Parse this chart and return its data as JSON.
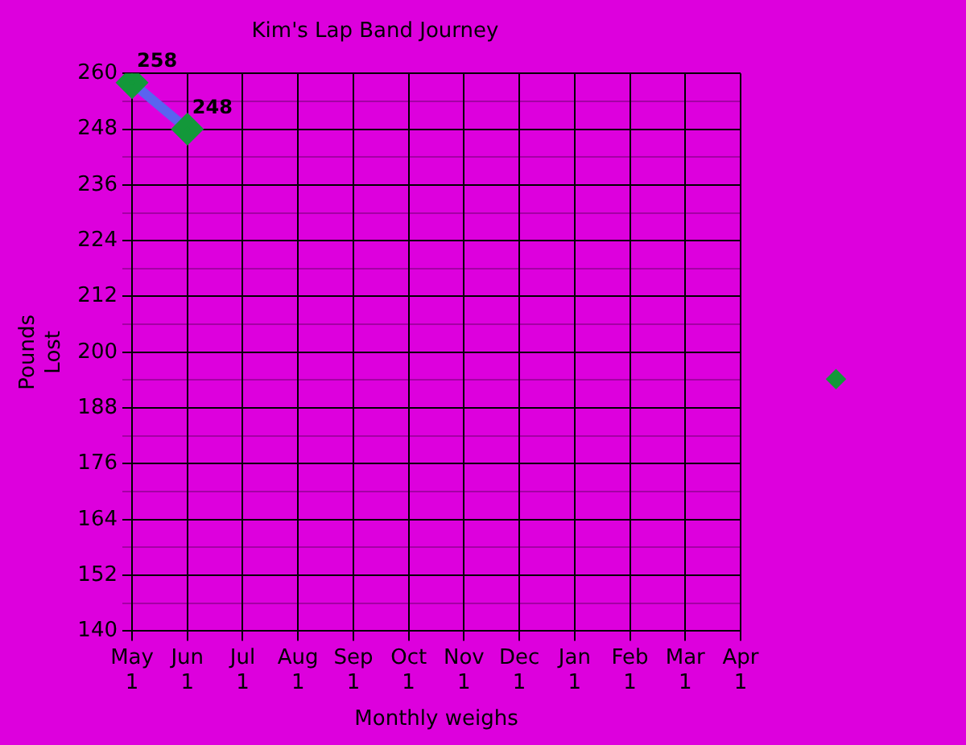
{
  "chart_data": {
    "type": "line",
    "title": "Kim's Lap Band Journey",
    "xlabel": "Monthly weighs",
    "ylabel": "Pounds\nLost",
    "categories": [
      "May\n1",
      "Jun\n1",
      "Jul\n1",
      "Aug\n1",
      "Sep\n1",
      "Oct\n1",
      "Nov\n1",
      "Dec\n1",
      "Jan\n1",
      "Feb\n1",
      "Mar\n1",
      "Apr\n1"
    ],
    "series": [
      {
        "color": "#13983a",
        "values": [
          258,
          248,
          null,
          null,
          null,
          null,
          null,
          null,
          null,
          null,
          null,
          null
        ]
      }
    ],
    "ylim": [
      140,
      260
    ],
    "yticks": [
      140,
      {
        "value": 146,
        "label": null
      },
      152,
      {
        "value": 158,
        "label": null
      },
      164,
      {
        "value": 170,
        "label": null
      },
      176,
      {
        "value": 182,
        "label": null
      },
      188,
      {
        "value": 194,
        "label": null
      },
      200,
      {
        "value": 206,
        "label": null
      },
      212,
      {
        "value": 218,
        "label": null
      },
      224,
      {
        "value": 230,
        "label": null
      },
      236,
      {
        "value": 242,
        "label": null
      },
      248,
      {
        "value": 254,
        "label": null
      },
      260
    ],
    "grid": true,
    "marker": "diamond",
    "line_style": "solid",
    "data_labels": true
  }
}
